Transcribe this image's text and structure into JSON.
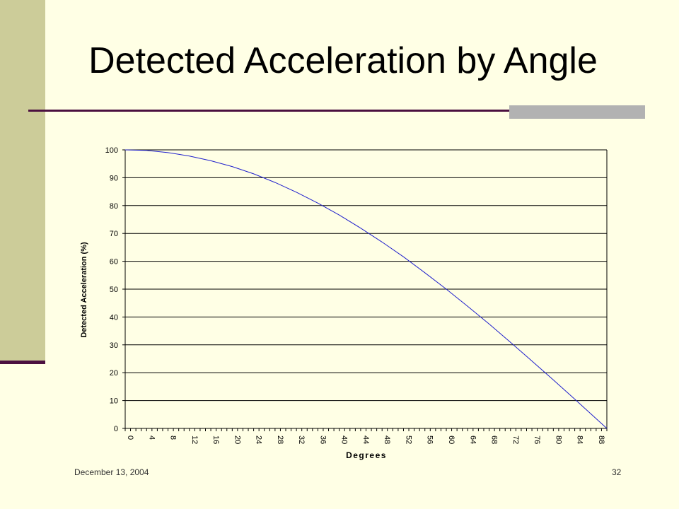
{
  "slide": {
    "title": "Detected Acceleration by Angle",
    "footer_date": "December 13, 2004",
    "page_number": "32"
  },
  "colors": {
    "background": "#FFFFE5",
    "left_band": "#CCCC99",
    "accent_rule": "#4B1040",
    "accent_block": "#B2B2B2",
    "series_line": "#1F1FCC"
  },
  "chart_data": {
    "type": "line",
    "title": "",
    "xlabel": "Degrees",
    "ylabel": "Detected Acceleration (%)",
    "xlim": [
      0,
      90
    ],
    "ylim": [
      0,
      100
    ],
    "x_ticks": [
      "0",
      "4",
      "8",
      "12",
      "16",
      "20",
      "24",
      "28",
      "32",
      "36",
      "40",
      "44",
      "48",
      "52",
      "56",
      "60",
      "64",
      "68",
      "72",
      "76",
      "80",
      "84",
      "88"
    ],
    "y_ticks": [
      "0",
      "10",
      "20",
      "30",
      "40",
      "50",
      "60",
      "70",
      "80",
      "90",
      "100"
    ],
    "grid": "horizontal",
    "legend": "none",
    "series": [
      {
        "x": [
          0,
          4,
          8,
          12,
          16,
          20,
          24,
          28,
          32,
          36,
          40,
          44,
          48,
          52,
          56,
          60,
          64,
          68,
          72,
          76,
          80,
          84,
          88,
          90
        ],
        "values": [
          100,
          99.8,
          99.0,
          97.8,
          96.1,
          94.0,
          91.4,
          88.3,
          84.8,
          80.9,
          76.6,
          71.9,
          66.9,
          61.6,
          55.9,
          50.0,
          43.8,
          37.5,
          30.9,
          24.2,
          17.4,
          10.5,
          3.5,
          0
        ]
      }
    ]
  }
}
